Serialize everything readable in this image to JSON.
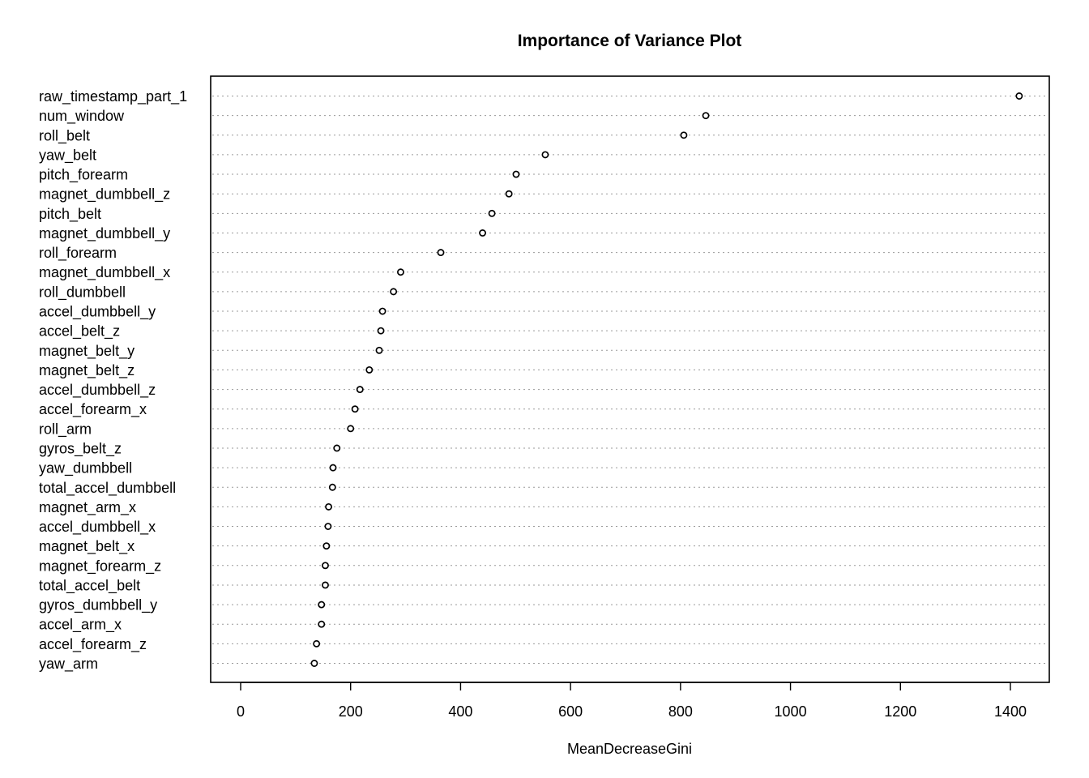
{
  "chart_data": {
    "type": "scatter",
    "title": "Importance of Variance Plot",
    "xlabel": "MeanDecreaseGini",
    "ylabel": "",
    "xlim": [
      0,
      1400
    ],
    "xticks": [
      0,
      200,
      400,
      600,
      800,
      1000,
      1200,
      1400
    ],
    "grid": "dotted horizontal",
    "categories": [
      "raw_timestamp_part_1",
      "num_window",
      "roll_belt",
      "yaw_belt",
      "pitch_forearm",
      "magnet_dumbbell_z",
      "pitch_belt",
      "magnet_dumbbell_y",
      "roll_forearm",
      "magnet_dumbbell_x",
      "roll_dumbbell",
      "accel_dumbbell_y",
      "accel_belt_z",
      "magnet_belt_y",
      "magnet_belt_z",
      "accel_dumbbell_z",
      "accel_forearm_x",
      "roll_arm",
      "gyros_belt_z",
      "yaw_dumbbell",
      "total_accel_dumbbell",
      "magnet_arm_x",
      "accel_dumbbell_x",
      "magnet_belt_x",
      "magnet_forearm_z",
      "total_accel_belt",
      "gyros_dumbbell_y",
      "accel_arm_x",
      "accel_forearm_z",
      "yaw_arm"
    ],
    "values": [
      1416,
      846,
      806,
      554,
      501,
      488,
      457,
      440,
      364,
      291,
      278,
      258,
      255,
      252,
      234,
      217,
      208,
      200,
      175,
      168,
      167,
      160,
      159,
      156,
      154,
      154,
      147,
      147,
      138,
      134
    ]
  }
}
